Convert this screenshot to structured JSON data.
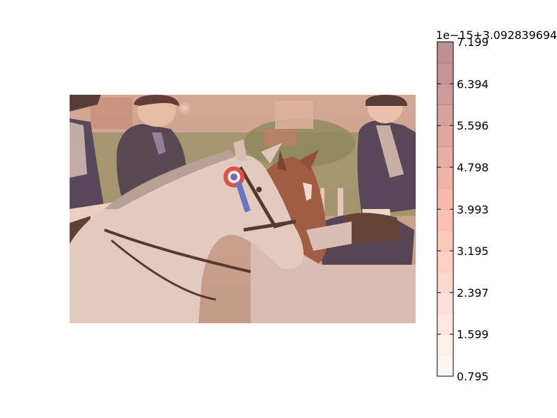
{
  "chart_data": {
    "type": "heatmap",
    "image": {
      "content": "photo",
      "overlay_colormap": "Reds",
      "overlay_alpha": 0.45
    },
    "colorbar": {
      "offset_label": "1e−15+3.092839694",
      "ticks": [
        "0.795",
        "1.599",
        "2.397",
        "3.195",
        "3.993",
        "4.798",
        "5.596",
        "6.394",
        "7.199"
      ],
      "tick_values": [
        0.795,
        1.599,
        2.397,
        3.195,
        3.993,
        4.798,
        5.596,
        6.394,
        7.199
      ],
      "range": [
        0.795,
        7.199
      ],
      "levels": 16,
      "colors": {
        "low": "#fff5f0",
        "mid": "#fb6a4a",
        "high": "#67000d"
      }
    }
  }
}
